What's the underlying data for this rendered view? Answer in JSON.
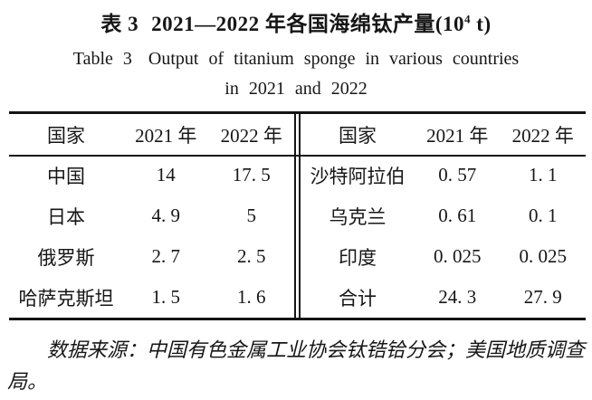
{
  "caption": {
    "zh_label": "表 3",
    "zh_main": "2021—2022 年各国海绵钛产量(10",
    "zh_sup": "4",
    "zh_suffix": " t)",
    "en_label": "Table 3",
    "en_line1": "Output of titanium sponge in various countries",
    "en_line2": "in 2021 and 2022"
  },
  "table": {
    "left": {
      "headers": [
        "国家",
        "2021 年",
        "2022 年"
      ],
      "rows": [
        [
          "中国",
          "14",
          "17. 5"
        ],
        [
          "日本",
          "4. 9",
          "5"
        ],
        [
          "俄罗斯",
          "2. 7",
          "2. 5"
        ],
        [
          "哈萨克斯坦",
          "1. 5",
          "1. 6"
        ]
      ]
    },
    "right": {
      "headers": [
        "国家",
        "2021 年",
        "2022 年"
      ],
      "rows": [
        [
          "沙特阿拉伯",
          "0. 57",
          "1. 1"
        ],
        [
          "乌克兰",
          "0. 61",
          "0. 1"
        ],
        [
          "印度",
          "0. 025",
          "0. 025"
        ],
        [
          "合计",
          "24. 3",
          "27. 9"
        ]
      ]
    }
  },
  "note": "数据来源：中国有色金属工业协会钛锆铪分会；美国地质调查局。",
  "colors": {
    "text": "#161616",
    "rule": "#141414",
    "background": "#ffffff"
  }
}
